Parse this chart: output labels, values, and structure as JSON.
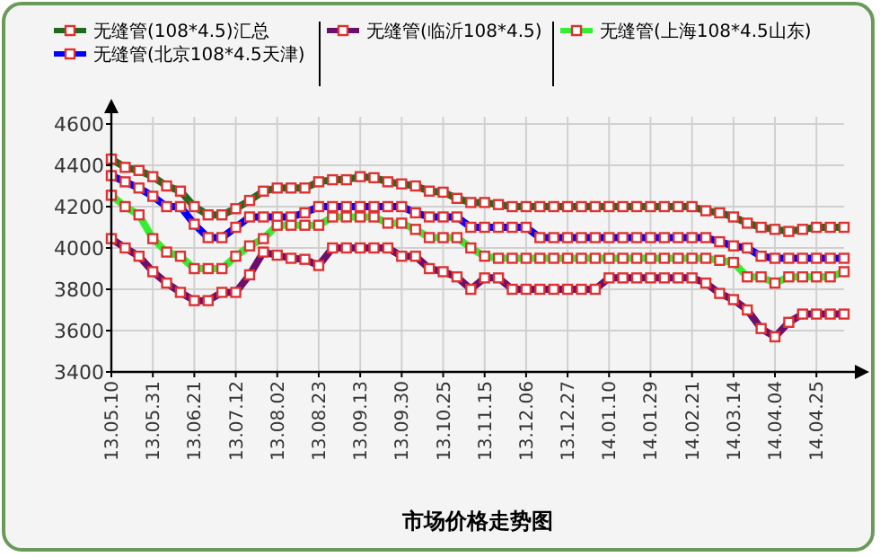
{
  "chart_data": {
    "type": "line",
    "xlabel": "市场价格走势图",
    "categories": [
      "13.05.10",
      null,
      null,
      "13.05.31",
      null,
      null,
      "13.06.21",
      null,
      null,
      "13.07.12",
      null,
      null,
      "13.08.02",
      null,
      null,
      "13.08.23",
      null,
      null,
      "13.09.13",
      null,
      null,
      "13.09.30",
      null,
      null,
      "13.10.25",
      null,
      null,
      "13.11.15",
      null,
      null,
      "13.12.06",
      null,
      null,
      "13.12.27",
      null,
      null,
      "14.01.10",
      null,
      null,
      "14.01.29",
      null,
      null,
      "14.02.21",
      null,
      null,
      "14.03.14",
      null,
      null,
      "14.04.04",
      null,
      null,
      "14.04.25",
      null,
      null
    ],
    "series": [
      {
        "name": "无缝管(108*4.5)汇总",
        "color": "#1e6b1e",
        "values": [
          4430,
          4390,
          4375,
          4345,
          4300,
          4275,
          4200,
          4160,
          4160,
          4190,
          4230,
          4275,
          4290,
          4290,
          4290,
          4320,
          4330,
          4330,
          4345,
          4340,
          4320,
          4310,
          4300,
          4275,
          4270,
          4240,
          4220,
          4220,
          4210,
          4200,
          4200,
          4200,
          4200,
          4200,
          4200,
          4200,
          4200,
          4200,
          4200,
          4200,
          4200,
          4200,
          4200,
          4180,
          4170,
          4150,
          4120,
          4100,
          4090,
          4080,
          4090,
          4100,
          4100,
          4100
        ]
      },
      {
        "name": "无缝管(北京108*4.5天津)",
        "color": "#0000ff",
        "values": [
          4350,
          4320,
          4290,
          4250,
          4200,
          4200,
          4115,
          4050,
          4050,
          4100,
          4150,
          4150,
          4150,
          4150,
          4170,
          4200,
          4200,
          4200,
          4200,
          4200,
          4200,
          4200,
          4170,
          4150,
          4150,
          4150,
          4100,
          4100,
          4100,
          4100,
          4100,
          4050,
          4050,
          4050,
          4050,
          4050,
          4050,
          4050,
          4050,
          4050,
          4050,
          4050,
          4050,
          4050,
          4030,
          4010,
          4000,
          3960,
          3950,
          3950,
          3950,
          3950,
          3950,
          3950
        ]
      },
      {
        "name": "无缝管(临沂108*4.5)",
        "color": "#6b0f6b",
        "values": [
          4045,
          4000,
          3960,
          3885,
          3830,
          3785,
          3745,
          3745,
          3785,
          3785,
          3870,
          3980,
          3965,
          3950,
          3945,
          3915,
          4000,
          4000,
          4000,
          4000,
          4000,
          3960,
          3960,
          3900,
          3885,
          3860,
          3800,
          3855,
          3855,
          3800,
          3800,
          3800,
          3800,
          3800,
          3800,
          3800,
          3855,
          3855,
          3855,
          3855,
          3855,
          3855,
          3855,
          3830,
          3780,
          3750,
          3700,
          3610,
          3570,
          3640,
          3680,
          3680,
          3680,
          3680
        ]
      },
      {
        "name": "无缝管(上海108*4.5山东)",
        "color": "#33ee33",
        "values": [
          4255,
          4200,
          4160,
          4045,
          3980,
          3960,
          3900,
          3900,
          3900,
          3960,
          4010,
          4045,
          4110,
          4110,
          4110,
          4110,
          4150,
          4150,
          4150,
          4150,
          4120,
          4120,
          4090,
          4050,
          4050,
          4050,
          4000,
          3960,
          3950,
          3950,
          3950,
          3950,
          3950,
          3950,
          3950,
          3950,
          3950,
          3950,
          3950,
          3950,
          3950,
          3950,
          3950,
          3950,
          3940,
          3930,
          3860,
          3860,
          3830,
          3860,
          3860,
          3860,
          3860,
          3885
        ]
      }
    ],
    "ylim": [
      3400,
      4600
    ],
    "yticks": [
      3400,
      3600,
      3800,
      4000,
      4200,
      4400,
      4600
    ],
    "grid": true,
    "legend": "top",
    "marker": "square",
    "line_style": "solid"
  }
}
